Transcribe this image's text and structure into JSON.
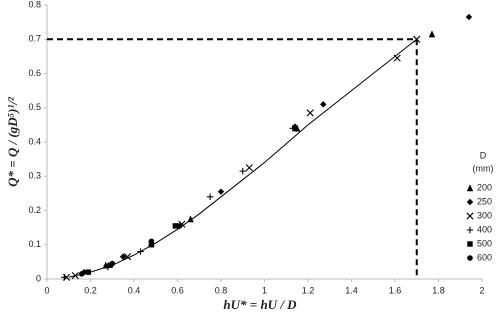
{
  "chart_data": {
    "type": "scatter",
    "xlabel": "hU* = hU / D",
    "ylabel": "Q* = Q / (gD⁵)¹/²",
    "xlim": [
      0,
      2
    ],
    "xticks": [
      0,
      0.2,
      0.4,
      0.6,
      0.8,
      1,
      1.2,
      1.4,
      1.6,
      1.8,
      2
    ],
    "ylim": [
      0,
      0.8
    ],
    "yticks": [
      0,
      0.1,
      0.2,
      0.3,
      0.4,
      0.5,
      0.6,
      0.7,
      0.8
    ],
    "legend_title": [
      "D",
      "(mm)"
    ],
    "legend_position": "right",
    "series": [
      {
        "name": "200",
        "marker": "triangle",
        "color": "#000000",
        "x": [
          0.27,
          0.48,
          0.66,
          1.15,
          1.77
        ],
        "values": [
          0.04,
          0.105,
          0.175,
          0.44,
          0.715
        ]
      },
      {
        "name": "250",
        "marker": "diamond",
        "color": "#000000",
        "x": [
          0.17,
          0.35,
          0.6,
          0.8,
          1.14,
          1.27,
          1.94
        ],
        "values": [
          0.02,
          0.065,
          0.155,
          0.255,
          0.445,
          0.51,
          0.765
        ]
      },
      {
        "name": "300",
        "marker": "cross",
        "color": "#000000",
        "x": [
          0.09,
          0.13,
          0.37,
          0.62,
          0.93,
          1.21,
          1.61,
          1.7
        ],
        "values": [
          0.005,
          0.01,
          0.065,
          0.16,
          0.325,
          0.485,
          0.645,
          0.7
        ]
      },
      {
        "name": "400",
        "marker": "plus",
        "color": "#000000",
        "x": [
          0.08,
          0.28,
          0.43,
          0.75,
          0.9,
          1.13
        ],
        "values": [
          0.005,
          0.035,
          0.08,
          0.24,
          0.315,
          0.44
        ]
      },
      {
        "name": "500",
        "marker": "square",
        "color": "#000000",
        "x": [
          0.19,
          0.29,
          0.48,
          0.59
        ],
        "values": [
          0.02,
          0.04,
          0.1,
          0.155
        ]
      },
      {
        "name": "600",
        "marker": "circle",
        "color": "#000000",
        "x": [
          0.16,
          0.3,
          0.48,
          0.61,
          1.14
        ],
        "values": [
          0.015,
          0.045,
          0.11,
          0.155,
          0.44
        ]
      }
    ],
    "fit": {
      "color": "#000000",
      "x": [
        0.1,
        0.2,
        0.3,
        0.4,
        0.5,
        0.6,
        0.7,
        0.8,
        0.9,
        1.0,
        1.1,
        1.2,
        1.3,
        1.4,
        1.5,
        1.6,
        1.7
      ],
      "values": [
        0.005,
        0.02,
        0.04,
        0.07,
        0.105,
        0.145,
        0.19,
        0.24,
        0.29,
        0.34,
        0.395,
        0.45,
        0.5,
        0.55,
        0.6,
        0.65,
        0.7
      ]
    },
    "reference": {
      "x": 1.7,
      "y": 0.7
    }
  }
}
